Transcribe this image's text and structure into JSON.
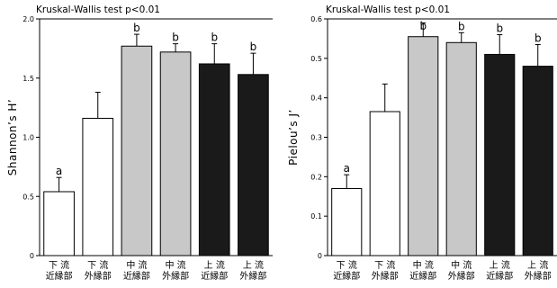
{
  "chart_data": [
    {
      "type": "bar",
      "title": "Kruskal-Wallis test p<0.01",
      "ylabel": "Shannon’s H’",
      "xlabel": "",
      "ylim": [
        0,
        2
      ],
      "yticks": [
        0,
        0.5,
        1.0,
        1.5,
        2.0
      ],
      "ytick_labels": [
        "0",
        "0.5",
        "1.0",
        "1.5",
        "2.0"
      ],
      "categories": [
        [
          "下 流",
          "近縁部"
        ],
        [
          "下 流",
          "外縁部"
        ],
        [
          "中 流",
          "近縁部"
        ],
        [
          "中 流",
          "外縁部"
        ],
        [
          "上 流",
          "近縁部"
        ],
        [
          "上 流",
          "外縁部"
        ]
      ],
      "values": [
        0.54,
        1.16,
        1.77,
        1.72,
        1.62,
        1.53
      ],
      "errors": [
        0.12,
        0.22,
        0.1,
        0.07,
        0.17,
        0.18
      ],
      "letters": [
        "a",
        "",
        "b",
        "b",
        "b",
        "b"
      ],
      "bar_fills": [
        "#ffffff",
        "#ffffff",
        "#c8c8c8",
        "#c8c8c8",
        "#1a1a1a",
        "#1a1a1a"
      ]
    },
    {
      "type": "bar",
      "title": "Kruskal-Wallis test p<0.01",
      "ylabel": "Pielou’s J’",
      "xlabel": "",
      "ylim": [
        0,
        0.6
      ],
      "yticks": [
        0,
        0.1,
        0.2,
        0.3,
        0.4,
        0.5,
        0.6
      ],
      "ytick_labels": [
        "0",
        "0.1",
        "0.2",
        "0.3",
        "0.4",
        "0.5",
        "0.6"
      ],
      "categories": [
        [
          "下 流",
          "近縁部"
        ],
        [
          "下 流",
          "外縁部"
        ],
        [
          "中 流",
          "近縁部"
        ],
        [
          "中 流",
          "外縁部"
        ],
        [
          "上 流",
          "近縁部"
        ],
        [
          "上 流",
          "外縁部"
        ]
      ],
      "values": [
        0.17,
        0.365,
        0.555,
        0.54,
        0.51,
        0.48
      ],
      "errors": [
        0.035,
        0.07,
        0.035,
        0.025,
        0.05,
        0.055
      ],
      "letters": [
        "a",
        "",
        "b",
        "b",
        "b",
        "b"
      ],
      "bar_fills": [
        "#ffffff",
        "#ffffff",
        "#c8c8c8",
        "#c8c8c8",
        "#1a1a1a",
        "#1a1a1a"
      ]
    }
  ]
}
